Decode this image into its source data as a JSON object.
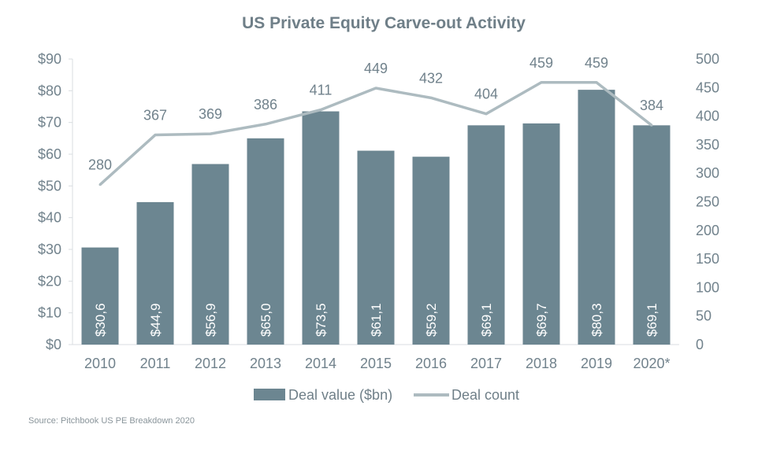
{
  "colors": {
    "bar": "#6c8691",
    "line": "#adbbc0",
    "axis": "#d9dde0",
    "text": "#71828c",
    "title": "#6f7f88"
  },
  "chart_data": {
    "type": "bar",
    "title": "US Private Equity Carve-out Activity",
    "categories": [
      "2010",
      "2011",
      "2012",
      "2013",
      "2014",
      "2015",
      "2016",
      "2017",
      "2018",
      "2019",
      "2020*"
    ],
    "series": [
      {
        "name": "Deal value ($bn)",
        "type": "bar",
        "axis": "left",
        "values": [
          30.6,
          44.9,
          56.9,
          65.0,
          73.5,
          61.1,
          59.2,
          69.1,
          69.7,
          80.3,
          69.1
        ],
        "labels": [
          "$30,6",
          "$44,9",
          "$56,9",
          "$65,0",
          "$73,5",
          "$61,1",
          "$59,2",
          "$69,1",
          "$69,7",
          "$80,3",
          "$69,1"
        ]
      },
      {
        "name": "Deal count",
        "type": "line",
        "axis": "right",
        "values": [
          280,
          367,
          369,
          386,
          411,
          449,
          432,
          404,
          459,
          459,
          384
        ],
        "labels": [
          "280",
          "367",
          "369",
          "386",
          "411",
          "449",
          "432",
          "404",
          "459",
          "459",
          "384"
        ]
      }
    ],
    "y_left": {
      "lim": [
        0,
        90
      ],
      "ticks": [
        0,
        10,
        20,
        30,
        40,
        50,
        60,
        70,
        80,
        90
      ],
      "tick_labels": [
        "$0",
        "$10",
        "$20",
        "$30",
        "$40",
        "$50",
        "$60",
        "$70",
        "$80",
        "$90"
      ]
    },
    "y_right": {
      "lim": [
        0,
        500
      ],
      "ticks": [
        0,
        50,
        100,
        150,
        200,
        250,
        300,
        350,
        400,
        450,
        500
      ],
      "tick_labels": [
        "0",
        "50",
        "100",
        "150",
        "200",
        "250",
        "300",
        "350",
        "400",
        "450",
        "500"
      ]
    },
    "legend": {
      "position": "bottom-center",
      "items": [
        "Deal value ($bn)",
        "Deal count"
      ]
    },
    "grid": false
  },
  "source_note": "Source: Pitchbook US PE Breakdown 2020"
}
